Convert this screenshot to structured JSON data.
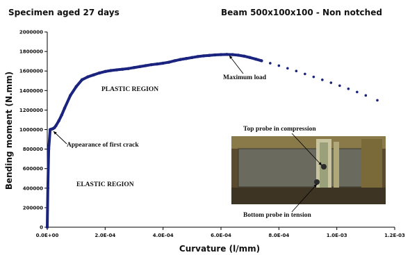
{
  "header": {
    "left_title": "Specimen aged 27 days",
    "right_title": "Beam 500x100x100 - Non notched"
  },
  "chart_data": {
    "type": "scatter",
    "xlabel": "Curvature (l/mm)",
    "ylabel": "Bending moment (N.mm)",
    "xlim": [
      0,
      0.0012
    ],
    "ylim": [
      0,
      2000000
    ],
    "x_ticks": [
      0,
      0.0002,
      0.0004,
      0.0006,
      0.0008,
      0.001,
      0.0012
    ],
    "x_tick_labels": [
      "0.0E+00",
      "2.0E-04",
      "4.0E-04",
      "6.0E-04",
      "8.0E-04",
      "1.0E-03",
      "1.2E-03"
    ],
    "y_ticks": [
      0,
      200000,
      400000,
      600000,
      800000,
      1000000,
      1200000,
      1400000,
      1600000,
      1800000,
      2000000
    ],
    "y_tick_labels": [
      "0",
      "200000",
      "400000",
      "600000",
      "800000",
      "1000000",
      "1200000",
      "1400000",
      "1600000",
      "1800000",
      "2000000"
    ],
    "grid": false,
    "series_color": "#1a237e",
    "x": [
      0,
      2e-06,
      5e-06,
      1e-05,
      1.5e-05,
      2e-05,
      2.5e-05,
      3e-05,
      4e-05,
      5e-05,
      6e-05,
      8e-05,
      0.0001,
      0.00012,
      0.00014,
      0.00016,
      0.00018,
      0.0002,
      0.00022,
      0.00024,
      0.00026,
      0.00028,
      0.0003,
      0.00032,
      0.00034,
      0.00036,
      0.00038,
      0.0004,
      0.00042,
      0.00044,
      0.00046,
      0.00048,
      0.0005,
      0.00052,
      0.00054,
      0.00056,
      0.00058,
      0.0006,
      0.00062,
      0.00064,
      0.00066,
      0.00068,
      0.0007,
      0.00072,
      0.00074,
      0.00077,
      0.0008,
      0.00083,
      0.00086,
      0.00089,
      0.00092,
      0.00095,
      0.00098,
      0.00101,
      0.00104,
      0.00107,
      0.0011,
      0.00114
    ],
    "y": [
      0,
      400000,
      800000,
      1000000,
      1005000,
      1010000,
      1020000,
      1040000,
      1090000,
      1150000,
      1220000,
      1350000,
      1440000,
      1510000,
      1540000,
      1560000,
      1580000,
      1595000,
      1605000,
      1612000,
      1618000,
      1625000,
      1635000,
      1645000,
      1655000,
      1665000,
      1672000,
      1680000,
      1690000,
      1705000,
      1718000,
      1728000,
      1738000,
      1748000,
      1755000,
      1760000,
      1765000,
      1768000,
      1770000,
      1768000,
      1762000,
      1752000,
      1738000,
      1722000,
      1705000,
      1680000,
      1655000,
      1628000,
      1600000,
      1570000,
      1540000,
      1510000,
      1480000,
      1450000,
      1418000,
      1385000,
      1350000,
      1300000
    ],
    "annotations": [
      {
        "text": "Maximum load",
        "x": 0.000615,
        "y": 1770000
      },
      {
        "text": "PLASTIC REGION",
        "x": 0.00016,
        "y": 1420000
      },
      {
        "text": "Appearance of first crack",
        "x": 1.6e-05,
        "y": 1010000
      },
      {
        "text": "ELASTIC REGION",
        "x": 4e-05,
        "y": 450000
      },
      {
        "text": "Top probe in compression",
        "x": 0.00061,
        "y": 1000000
      },
      {
        "text": "Bottom probe in tension",
        "x": 0.00061,
        "y": 130000
      }
    ]
  },
  "photo": {
    "description": "Beam specimen photo inset"
  }
}
